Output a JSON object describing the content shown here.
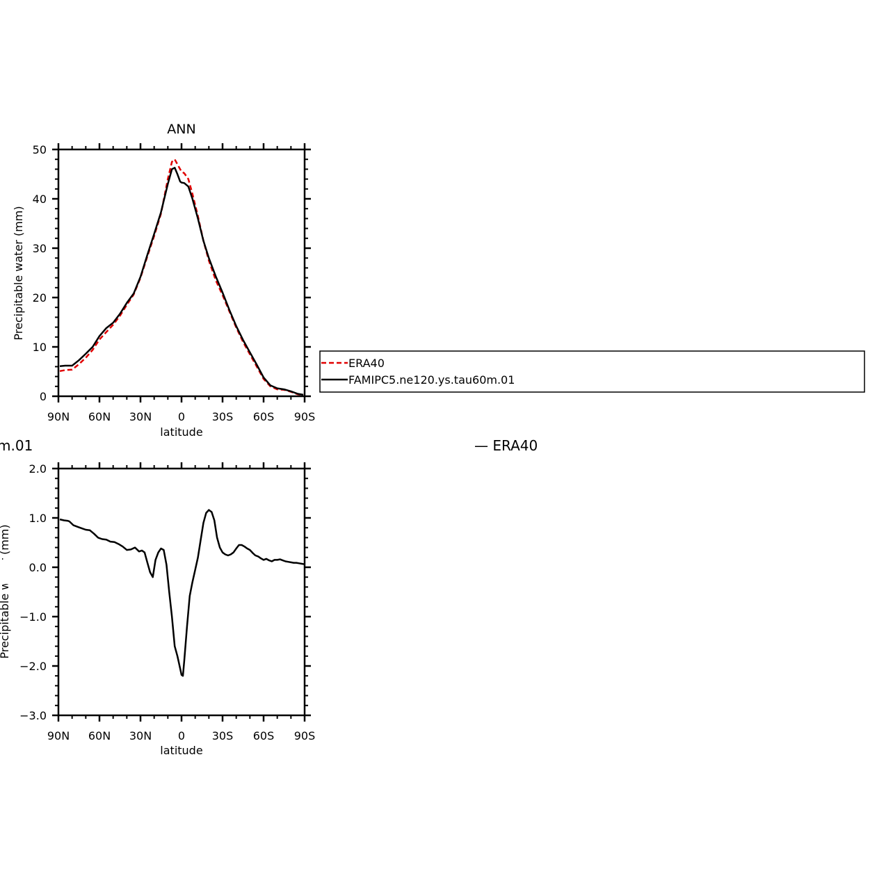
{
  "chart_data": [
    {
      "type": "line",
      "title": "ANN",
      "xlabel": "latitude",
      "ylabel": "Precipitable water (mm)",
      "xlim": [
        90,
        -90
      ],
      "ylim": [
        0,
        50
      ],
      "xticks": [
        90,
        60,
        30,
        0,
        -30,
        -60,
        -90
      ],
      "xtick_labels": [
        "90N",
        "60N",
        "30N",
        "0",
        "30S",
        "60S",
        "90S"
      ],
      "yticks": [
        0,
        10,
        20,
        30,
        40,
        50
      ],
      "ytick_labels": [
        "0",
        "10",
        "20",
        "30",
        "40",
        "50"
      ],
      "grid": false,
      "legend": {
        "placement": "right",
        "entries": [
          {
            "label": "ERA40",
            "color": "#e00000",
            "dash": "dashed"
          },
          {
            "label": "FAMIPC5.ne120.ys.tau60m.01",
            "color": "#000000",
            "dash": "solid"
          }
        ]
      },
      "series": [
        {
          "name": "ERA40",
          "color": "#e00000",
          "style": "dashed",
          "x": [
            89,
            85,
            80,
            75,
            70,
            65,
            60,
            55,
            50,
            45,
            40,
            35,
            30,
            25,
            20,
            15,
            10,
            7,
            5,
            3,
            1,
            0,
            -2,
            -5,
            -8,
            -12,
            -16,
            -20,
            -25,
            -30,
            -35,
            -40,
            -45,
            -50,
            -55,
            -60,
            -65,
            -70,
            -75,
            -80,
            -85,
            -89
          ],
          "y": [
            5.1,
            5.3,
            5.4,
            6.5,
            7.8,
            9.4,
            11.5,
            13.0,
            14.5,
            16.3,
            18.5,
            20.6,
            24.0,
            28.3,
            32.5,
            37.0,
            44.0,
            47.5,
            48.0,
            47.0,
            46.0,
            45.5,
            45.2,
            44.0,
            41.0,
            36.5,
            31.5,
            27.5,
            23.5,
            20.5,
            17.2,
            13.9,
            11.0,
            8.5,
            6.0,
            3.5,
            2.0,
            1.4,
            1.3,
            0.9,
            0.4,
            0.2
          ]
        },
        {
          "name": "FAMIPC5.ne120.ys.tau60m.01",
          "color": "#000000",
          "style": "solid",
          "x": [
            89,
            85,
            80,
            75,
            70,
            65,
            60,
            55,
            50,
            45,
            40,
            35,
            30,
            25,
            20,
            15,
            10,
            7,
            5,
            3,
            1,
            0,
            -2,
            -5,
            -8,
            -12,
            -16,
            -20,
            -25,
            -30,
            -35,
            -40,
            -45,
            -50,
            -55,
            -60,
            -65,
            -70,
            -75,
            -80,
            -85,
            -89
          ],
          "y": [
            6.1,
            6.2,
            6.2,
            7.3,
            8.6,
            10.0,
            12.2,
            13.8,
            14.9,
            16.7,
            18.9,
            20.8,
            24.2,
            28.6,
            32.9,
            37.3,
            43.0,
            46.0,
            46.3,
            45.0,
            43.5,
            43.3,
            43.2,
            42.5,
            40.0,
            36.0,
            31.5,
            28.0,
            24.3,
            21.0,
            17.5,
            14.2,
            11.4,
            8.9,
            6.4,
            3.8,
            2.2,
            1.6,
            1.4,
            1.0,
            0.5,
            0.3
          ]
        }
      ]
    },
    {
      "type": "line",
      "title_fragment": "m.01",
      "title_fragment_right": "— ERA40",
      "xlabel": "latitude",
      "ylabel_fragment": "Precipitable water (mm)",
      "xlim": [
        90,
        -90
      ],
      "ylim": [
        -3.0,
        2.0
      ],
      "xticks": [
        90,
        60,
        30,
        0,
        -30,
        -60,
        -90
      ],
      "xtick_labels": [
        "90N",
        "60N",
        "30N",
        "0",
        "30S",
        "60S",
        "90S"
      ],
      "yticks": [
        2.0,
        1.0,
        0.0,
        -1.0,
        -2.0,
        -3.0
      ],
      "ytick_labels": [
        "2.0",
        "1.0",
        "0.0",
        "−1.0",
        "−2.0",
        "−3.0"
      ],
      "grid": false,
      "series": [
        {
          "color": "#000000",
          "style": "solid",
          "x": [
            89,
            86,
            83,
            82,
            79,
            76,
            73,
            70,
            67,
            64,
            61,
            58,
            55,
            52,
            49,
            46,
            43,
            40,
            37,
            34,
            31,
            29,
            27,
            25,
            23,
            21,
            19,
            17,
            15,
            13,
            11,
            9,
            7,
            5,
            3,
            1,
            0,
            -1,
            -2,
            -4,
            -6,
            -8,
            -10,
            -12,
            -14,
            -16,
            -18,
            -20,
            -22,
            -24,
            -26,
            -28,
            -30,
            -32,
            -34,
            -36,
            -38,
            -40,
            -42,
            -44,
            -46,
            -48,
            -50,
            -52,
            -54,
            -56,
            -58,
            -60,
            -62,
            -64,
            -66,
            -68,
            -70,
            -72,
            -74,
            -76,
            -78,
            -80,
            -82,
            -84,
            -86,
            -88,
            -90
          ],
          "y": [
            0.97,
            0.95,
            0.94,
            0.93,
            0.85,
            0.82,
            0.79,
            0.76,
            0.75,
            0.68,
            0.6,
            0.57,
            0.56,
            0.52,
            0.51,
            0.47,
            0.42,
            0.35,
            0.36,
            0.4,
            0.32,
            0.34,
            0.3,
            0.1,
            -0.1,
            -0.2,
            0.15,
            0.3,
            0.38,
            0.35,
            0.05,
            -0.5,
            -1.0,
            -1.6,
            -1.8,
            -2.05,
            -2.18,
            -2.2,
            -1.9,
            -1.2,
            -0.58,
            -0.3,
            -0.05,
            0.2,
            0.55,
            0.9,
            1.1,
            1.16,
            1.12,
            0.95,
            0.6,
            0.4,
            0.3,
            0.26,
            0.24,
            0.26,
            0.3,
            0.38,
            0.45,
            0.45,
            0.42,
            0.38,
            0.35,
            0.29,
            0.24,
            0.22,
            0.18,
            0.15,
            0.17,
            0.14,
            0.12,
            0.15,
            0.15,
            0.16,
            0.14,
            0.12,
            0.11,
            0.1,
            0.09,
            0.09,
            0.08,
            0.07,
            0.06
          ]
        }
      ]
    }
  ]
}
